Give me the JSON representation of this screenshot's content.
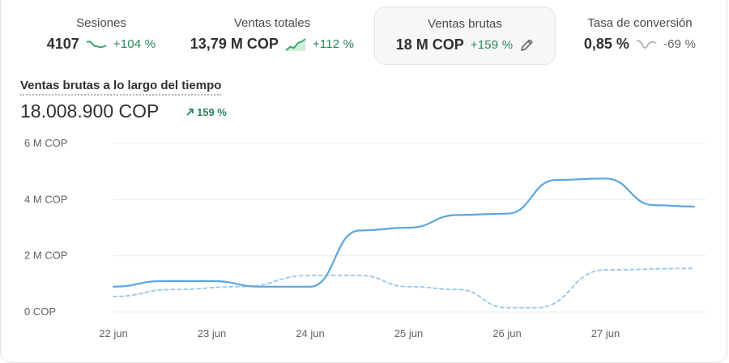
{
  "metrics": [
    {
      "label": "Sesiones",
      "value": "4107",
      "change": "+104 %",
      "trend": "up",
      "spark": "green-line-icon"
    },
    {
      "label": "Ventas totales",
      "value": "13,79 M COP",
      "change": "+112 %",
      "trend": "up",
      "spark": "green-area-icon"
    },
    {
      "label": "Ventas brutas",
      "value": "18 M COP",
      "change": "+159 %",
      "trend": "up",
      "edit_icon": "pencil-icon"
    },
    {
      "label": "Tasa de conversión",
      "value": "0,85 %",
      "change": "-69 %",
      "trend": "down",
      "spark": "gray-line-icon"
    }
  ],
  "section": {
    "title": "Ventas brutas a lo largo del tiempo",
    "total": "18.008.900 COP",
    "change": "159 %"
  },
  "chart_data": {
    "type": "line",
    "x": [
      "22 jun",
      "23 jun",
      "24 jun",
      "25 jun",
      "26 jun",
      "27 jun"
    ],
    "yticks": [
      "6 M COP",
      "4 M COP",
      "2 M COP",
      "0 COP"
    ],
    "ylim": [
      0,
      6000000
    ],
    "grid": true,
    "colors": {
      "current": "#5aa6e0",
      "previous": "#9fcbee"
    },
    "series": [
      {
        "key": "current",
        "style": "solid",
        "points": [
          [
            0,
            900000
          ],
          [
            0.5,
            1100000
          ],
          [
            1,
            1100000
          ],
          [
            1.5,
            900000
          ],
          [
            2,
            900000
          ],
          [
            2.5,
            2900000
          ],
          [
            3,
            3000000
          ],
          [
            3.5,
            3450000
          ],
          [
            4,
            3500000
          ],
          [
            4.5,
            4700000
          ],
          [
            5,
            4750000
          ],
          [
            5.5,
            3800000
          ],
          [
            5.9,
            3750000
          ]
        ]
      },
      {
        "key": "previous",
        "style": "dashed",
        "points": [
          [
            0,
            550000
          ],
          [
            0.6,
            800000
          ],
          [
            1.3,
            900000
          ],
          [
            2,
            1300000
          ],
          [
            2.5,
            1300000
          ],
          [
            3,
            900000
          ],
          [
            3.5,
            800000
          ],
          [
            4,
            150000
          ],
          [
            4.3,
            150000
          ],
          [
            5,
            1500000
          ],
          [
            5.9,
            1550000
          ]
        ]
      }
    ]
  }
}
